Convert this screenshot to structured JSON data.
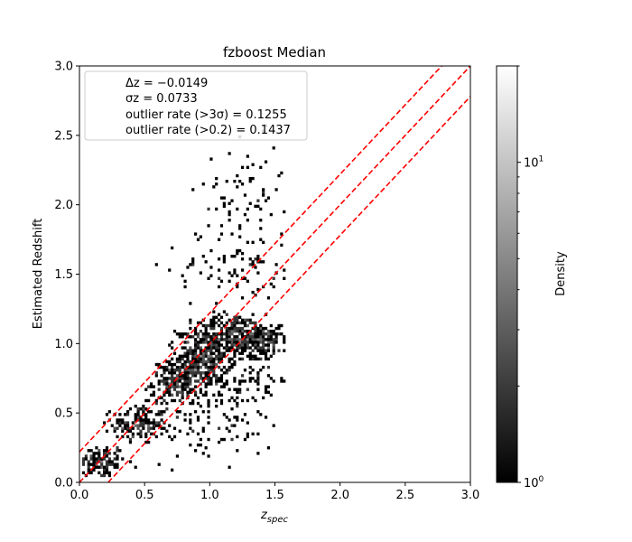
{
  "chart_data": {
    "type": "heatmap",
    "title": "fzboost Median",
    "xlabel": "z_spec",
    "ylabel": "Estimated Redshift",
    "xlim": [
      0,
      3
    ],
    "ylim": [
      0,
      3
    ],
    "x_ticks": [
      "0.0",
      "0.5",
      "1.0",
      "1.5",
      "2.0",
      "2.5",
      "3.0"
    ],
    "y_ticks": [
      "0.0",
      "0.5",
      "1.0",
      "1.5",
      "2.0",
      "2.5",
      "3.0"
    ],
    "grid": false,
    "colormap": "gray",
    "colorbar": {
      "label": "Density",
      "scale": "log",
      "min": 1,
      "max": 20,
      "tick_labels": [
        "10^0",
        "10^1"
      ]
    },
    "legend": {
      "placement": "top-left",
      "lines": [
        "Δz = −0.0149",
        "σz = 0.0733",
        "outlier rate (>3σ) = 0.1255",
        "outlier rate (>0.2) = 0.1437"
      ]
    },
    "reference_lines": [
      {
        "description": "one-to-one",
        "slope": 1,
        "intercept": 0,
        "color": "#ff0000",
        "style": "dashed"
      },
      {
        "description": "upper bound",
        "slope": 1,
        "intercept": 0.22,
        "color": "#ff0000",
        "style": "dashed"
      },
      {
        "description": "lower bound",
        "slope": 1,
        "intercept": -0.22,
        "color": "#ff0000",
        "style": "dashed"
      }
    ],
    "density_clusters": [
      {
        "x": 0.15,
        "y": 0.15,
        "sx": 0.1,
        "sy": 0.06,
        "n": 140
      },
      {
        "x": 0.45,
        "y": 0.42,
        "sx": 0.1,
        "sy": 0.07,
        "n": 160
      },
      {
        "x": 0.75,
        "y": 0.72,
        "sx": 0.1,
        "sy": 0.08,
        "n": 220
      },
      {
        "x": 0.95,
        "y": 0.9,
        "sx": 0.1,
        "sy": 0.1,
        "n": 320
      },
      {
        "x": 1.2,
        "y": 1.08,
        "sx": 0.15,
        "sy": 0.07,
        "n": 260
      },
      {
        "x": 1.4,
        "y": 1.02,
        "sx": 0.1,
        "sy": 0.06,
        "n": 160
      },
      {
        "x": 1.2,
        "y": 0.75,
        "sx": 0.25,
        "sy": 0.1,
        "n": 140
      },
      {
        "x": 1.2,
        "y": 1.55,
        "sx": 0.25,
        "sy": 0.15,
        "n": 90
      },
      {
        "x": 1.3,
        "y": 2.05,
        "sx": 0.2,
        "sy": 0.2,
        "n": 80
      },
      {
        "x": 1.0,
        "y": 0.4,
        "sx": 0.25,
        "sy": 0.12,
        "n": 90
      }
    ],
    "data_extent_x": [
      0.02,
      1.58
    ]
  }
}
